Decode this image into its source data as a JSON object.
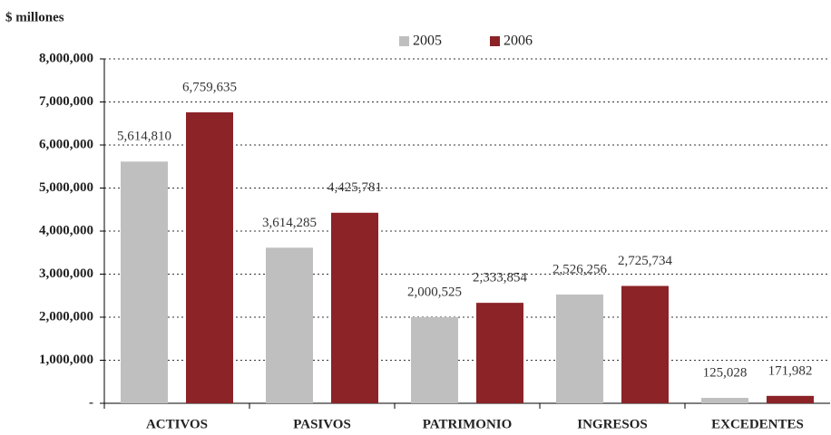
{
  "chart_data": {
    "type": "bar",
    "y_axis_label": "$ millones",
    "categories": [
      "ACTIVOS",
      "PASIVOS",
      "PATRIMONIO",
      "INGRESOS",
      "EXCEDENTES"
    ],
    "series": [
      {
        "name": "2005",
        "color": "#bfbfbf",
        "values": [
          5614810,
          3614285,
          2000525,
          2526256,
          125028
        ],
        "value_labels": [
          "5,614,810",
          "3,614,285",
          "2,000,525",
          "2,526,256",
          "125,028"
        ]
      },
      {
        "name": "2006",
        "color": "#8b2327",
        "values": [
          6759635,
          4425781,
          2333854,
          2725734,
          171982
        ],
        "value_labels": [
          "6,759,635",
          "4,425,781",
          "2,333,854",
          "2,725,734",
          "171,982"
        ]
      }
    ],
    "ylim": [
      0,
      8000000
    ],
    "yticks": [
      {
        "value": 0,
        "label": "-"
      },
      {
        "value": 1000000,
        "label": "1,000,000"
      },
      {
        "value": 2000000,
        "label": "2,000,000"
      },
      {
        "value": 3000000,
        "label": "3,000,000"
      },
      {
        "value": 4000000,
        "label": "4,000,000"
      },
      {
        "value": 5000000,
        "label": "5,000,000"
      },
      {
        "value": 6000000,
        "label": "6,000,000"
      },
      {
        "value": 7000000,
        "label": "7,000,000"
      },
      {
        "value": 8000000,
        "label": "8,000,000"
      }
    ],
    "grid": true,
    "legend": "top"
  }
}
